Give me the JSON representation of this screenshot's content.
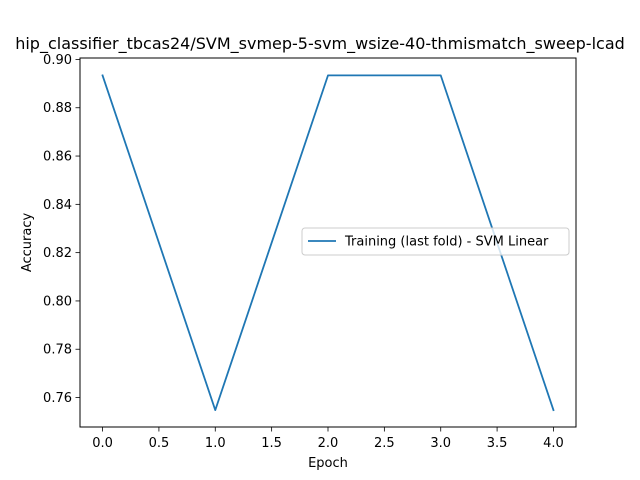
{
  "chart_data": {
    "type": "line",
    "title": "hip_classifier_tbcas24/SVM_svmep-5-svm_wsize-40-thmismatch_sweep-lcad",
    "xlabel": "Epoch",
    "ylabel": "Accuracy",
    "xlim": [
      -0.2,
      4.2
    ],
    "ylim": [
      0.7478,
      0.9006
    ],
    "xticks": [
      0.0,
      0.5,
      1.0,
      1.5,
      2.0,
      2.5,
      3.0,
      3.5,
      4.0
    ],
    "xtick_labels": [
      "0.0",
      "0.5",
      "1.0",
      "1.5",
      "2.0",
      "2.5",
      "3.0",
      "3.5",
      "4.0"
    ],
    "yticks": [
      0.76,
      0.78,
      0.8,
      0.82,
      0.84,
      0.86,
      0.88,
      0.9
    ],
    "ytick_labels": [
      "0.76",
      "0.78",
      "0.80",
      "0.82",
      "0.84",
      "0.86",
      "0.88",
      "0.90"
    ],
    "grid": false,
    "legend_position": "center-right",
    "series": [
      {
        "name": "Training (last fold) - SVM Linear",
        "color": "#1f77b4",
        "x": [
          0,
          1,
          2,
          3,
          4
        ],
        "y": [
          0.8934,
          0.7548,
          0.8934,
          0.8934,
          0.7548
        ]
      }
    ]
  }
}
